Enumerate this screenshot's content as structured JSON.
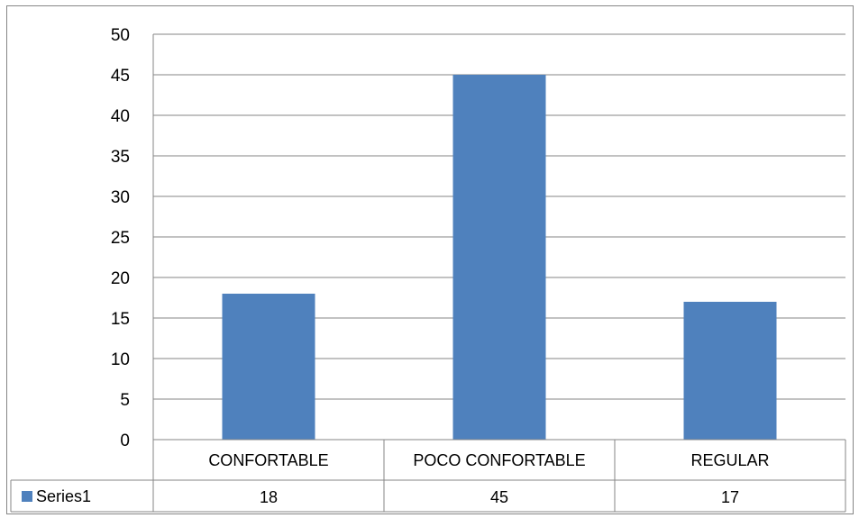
{
  "chart_data": {
    "type": "bar",
    "categories": [
      "CONFORTABLE",
      "POCO CONFORTABLE",
      "REGULAR"
    ],
    "series": [
      {
        "name": "Series1",
        "values": [
          18,
          45,
          17
        ],
        "color": "#4F81BD"
      }
    ],
    "ylim": [
      0,
      50
    ],
    "yticks": [
      0,
      5,
      10,
      15,
      20,
      25,
      30,
      35,
      40,
      45,
      50
    ],
    "grid": true,
    "legend": "data-table",
    "data_table": true
  },
  "colors": {
    "bar": "#4F81BD",
    "grid": "#868686",
    "axis": "#868686"
  }
}
